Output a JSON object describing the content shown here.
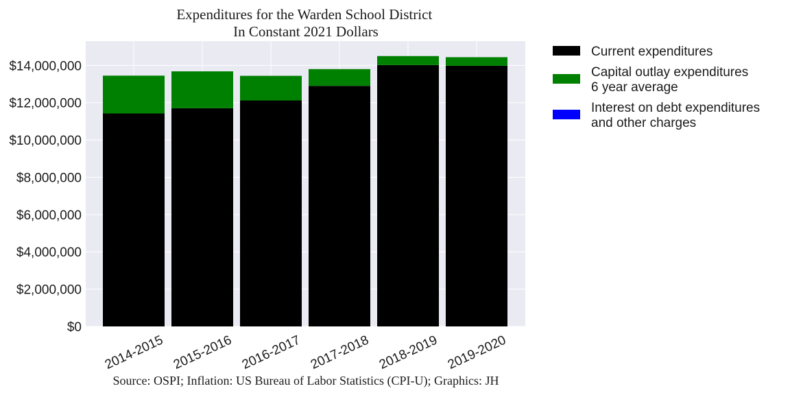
{
  "chart_data": {
    "type": "bar",
    "stacked": true,
    "title_lines": [
      "Expenditures for the Warden School District",
      "In Constant 2021 Dollars"
    ],
    "source": "Source: OSPI; Inflation: US Bureau of Labor Statistics (CPI-U); Graphics: JH",
    "categories": [
      "2014-2015",
      "2015-2016",
      "2016-2017",
      "2017-2018",
      "2018-2019",
      "2019-2020"
    ],
    "series": [
      {
        "name": "Current expenditures",
        "color": "#000000",
        "values": [
          11420000,
          11700000,
          12120000,
          12900000,
          14020000,
          13980000
        ]
      },
      {
        "name": "Capital outlay expenditures 6 year average",
        "color": "#008000",
        "values": [
          2030000,
          1980000,
          1320000,
          900000,
          480000,
          460000
        ]
      },
      {
        "name": "Interest on debt expenditures and other charges",
        "color": "#0000ff",
        "values": [
          0,
          0,
          0,
          0,
          0,
          0
        ]
      }
    ],
    "legend": [
      {
        "lines": [
          "Current expenditures"
        ],
        "color": "#000000"
      },
      {
        "lines": [
          "Capital outlay expenditures",
          "6 year average"
        ],
        "color": "#008000"
      },
      {
        "lines": [
          "Interest on debt expenditures",
          "and other charges"
        ],
        "color": "#0000ff"
      }
    ],
    "yticks": [
      0,
      2000000,
      4000000,
      6000000,
      8000000,
      10000000,
      12000000,
      14000000
    ],
    "ytick_labels": [
      "$0",
      "$2,000,000",
      "$4,000,000",
      "$6,000,000",
      "$8,000,000",
      "$10,000,000",
      "$12,000,000",
      "$14,000,000"
    ],
    "ylim": [
      0,
      15300000
    ],
    "grid": true,
    "legend_position": "outside-right",
    "background": "#eaeaf2"
  }
}
